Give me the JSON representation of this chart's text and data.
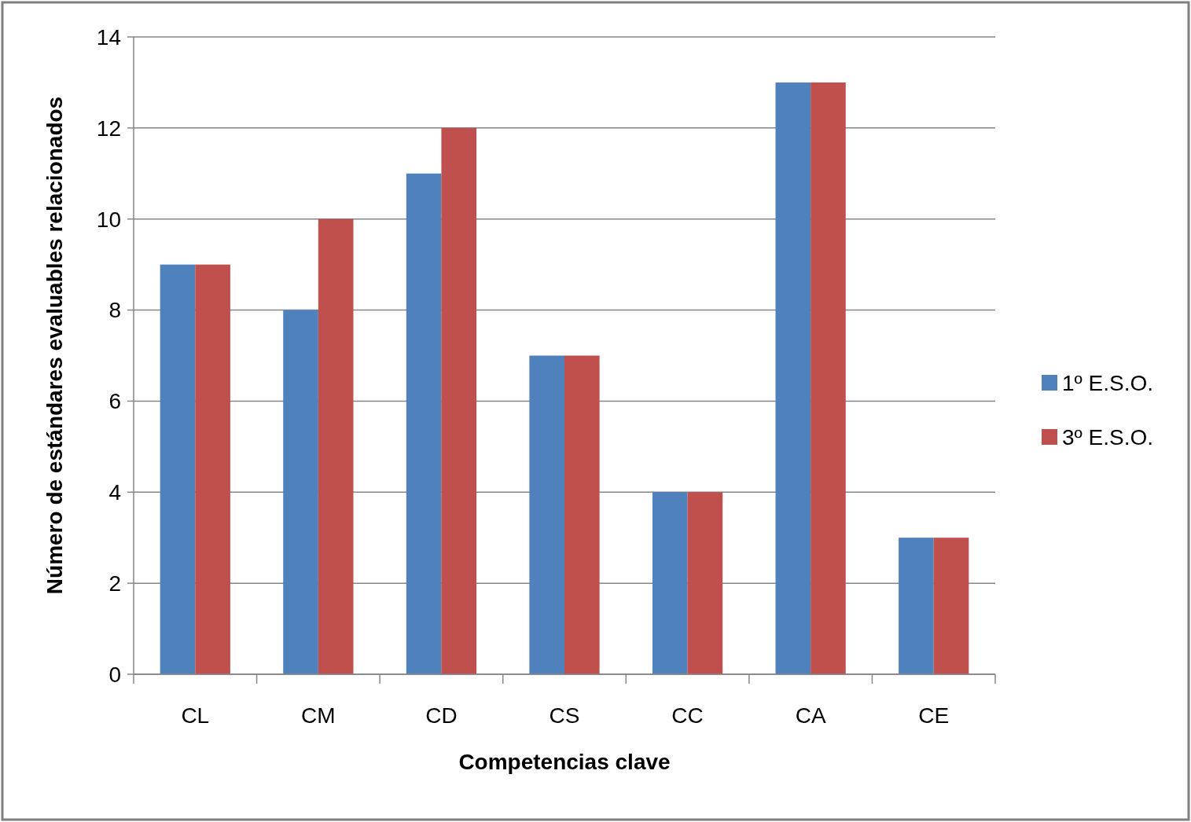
{
  "chart_data": {
    "type": "bar",
    "xlabel": "Competencias clave",
    "ylabel": "Número de estándares evaluables relacionados",
    "categories": [
      "CL",
      "CM",
      "CD",
      "CS",
      "CC",
      "CA",
      "CE"
    ],
    "series": [
      {
        "name": "1º E.S.O.",
        "color": "#4f81bd",
        "values": [
          9,
          8,
          11,
          7,
          4,
          13,
          3
        ]
      },
      {
        "name": "3º E.S.O.",
        "color": "#c0504d",
        "values": [
          9,
          10,
          12,
          7,
          4,
          13,
          3
        ]
      }
    ],
    "ylim": [
      0,
      14
    ],
    "yticks": [
      0,
      2,
      4,
      6,
      8,
      10,
      12,
      14
    ],
    "grid": "y",
    "legend": "right"
  }
}
